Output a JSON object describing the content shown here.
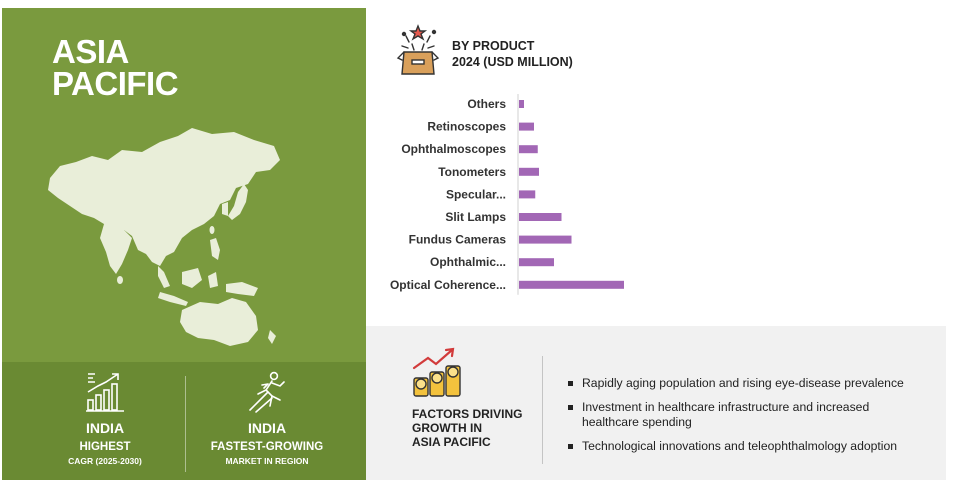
{
  "region": {
    "title_line1": "ASIA",
    "title_line2": "PACIFIC"
  },
  "stats": [
    {
      "icon": "growth-bars-icon",
      "main": "INDIA",
      "sub1": "HIGHEST",
      "sub2": "CAGR (2025-2030)"
    },
    {
      "icon": "running-figure-icon",
      "main": "INDIA",
      "sub1": "FASTEST-GROWING",
      "sub2": "MARKET IN REGION"
    }
  ],
  "chart_data": {
    "type": "bar",
    "orientation": "horizontal",
    "title_line1": "BY PRODUCT",
    "title_line2": "2024 (USD MILLION)",
    "categories": [
      "Others",
      "Retinoscopes",
      "Ophthalmoscopes",
      "Tonometers",
      "Specular...",
      "Slit Lamps",
      "Fundus Cameras",
      "Ophthalmic...",
      "Optical Coherence..."
    ],
    "values": [
      4,
      12,
      15,
      16,
      13,
      34,
      42,
      28,
      84
    ],
    "xlim": [
      0,
      100
    ],
    "grid": false,
    "bar_color": "#a267b5"
  },
  "factors": {
    "icon": "coins-growth-icon",
    "title_line1": "FACTORS DRIVING",
    "title_line2": "GROWTH IN",
    "title_line3": "ASIA PACIFIC",
    "drivers": [
      "Rapidly aging population and rising eye-disease prevalence",
      "Investment in healthcare infrastructure and increased healthcare spending",
      "Technological innovations and teleophthalmology adoption"
    ]
  },
  "colors": {
    "panel_green": "#7a9a3e",
    "panel_dark_green": "#6a8a33",
    "map_fill": "#e9eed9",
    "factors_bg": "#f1f1f1"
  }
}
